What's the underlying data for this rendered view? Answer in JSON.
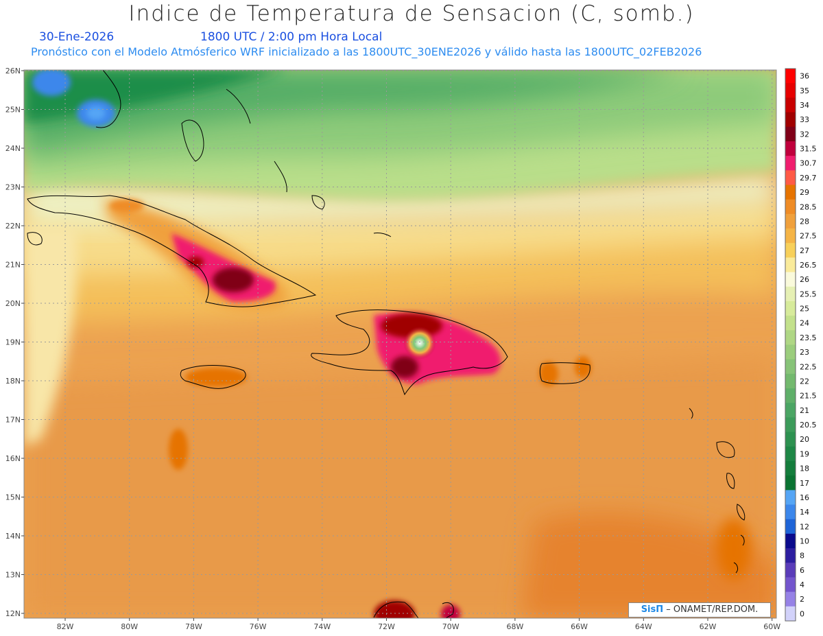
{
  "header": {
    "title": "Indice de Temperatura de Sensacion (C, somb.)",
    "date": "30-Ene-2026",
    "time": "1800 UTC / 2:00 pm Hora Local",
    "forecast": "Pronóstico con el Modelo Atmósferico WRF inicializado a las 1800UTC_30ENE2026 y válido hasta las  1800UTC_02FEB2026"
  },
  "axes": {
    "latitudes": [
      "26N",
      "25N",
      "24N",
      "23N",
      "22N",
      "21N",
      "20N",
      "19N",
      "18N",
      "17N",
      "16N",
      "15N",
      "14N",
      "13N",
      "12N"
    ],
    "longitudes": [
      "82W",
      "80W",
      "78W",
      "76W",
      "74W",
      "72W",
      "70W",
      "68W",
      "66W",
      "64W",
      "62W",
      "60W"
    ]
  },
  "colorbar": {
    "labels": [
      "36",
      "35",
      "34",
      "33",
      "32",
      "31.5",
      "30.7",
      "29.7",
      "29",
      "28.5",
      "28",
      "27.5",
      "27",
      "26.5",
      "26",
      "25.5",
      "25",
      "24",
      "23.5",
      "23",
      "22.5",
      "22",
      "21.5",
      "21",
      "20.5",
      "20",
      "19",
      "18",
      "17",
      "16",
      "14",
      "12",
      "10",
      "8",
      "6",
      "4",
      "2",
      "0"
    ],
    "colors": [
      "#ff0000",
      "#e60000",
      "#c80000",
      "#a00000",
      "#800018",
      "#c0003c",
      "#f01e6e",
      "#ff5a46",
      "#e67300",
      "#ef8c26",
      "#f0a03c",
      "#f5b446",
      "#f8d05a",
      "#faeb9b",
      "#fafadc",
      "#e6f0b4",
      "#d7eb9b",
      "#c3e18c",
      "#afd785",
      "#9bcd7d",
      "#87c378",
      "#73b96e",
      "#5faf69",
      "#4ba564",
      "#3c9b5a",
      "#2d9150",
      "#1e8746",
      "#147d3c",
      "#0a7332",
      "#55a5f5",
      "#3c87eb",
      "#1e64d7",
      "#0a0a8c",
      "#2d1ea0",
      "#5a3cb9",
      "#7355cd",
      "#9682e6",
      "#d2d2fa"
    ]
  },
  "credit": {
    "brand": "SisΠ",
    "text": "– ONAMET/REP.DOM."
  }
}
